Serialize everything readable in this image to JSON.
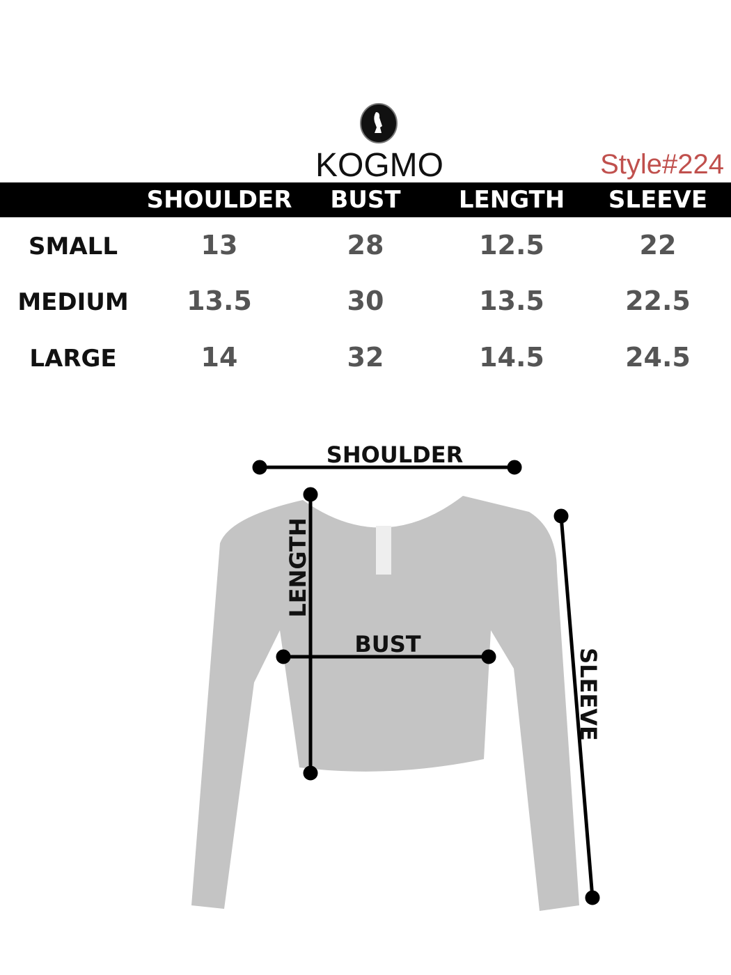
{
  "brand": {
    "name": "KOGMO",
    "logo_icon": "silhouette-head-oval-logo"
  },
  "style_number": "Style#224",
  "colors": {
    "header_bg": "#000000",
    "style_text": "#c0504d",
    "garment": "#c4c4c4"
  },
  "table": {
    "columns": [
      "SHOULDER",
      "BUST",
      "LENGTH",
      "SLEEVE"
    ],
    "rows": [
      {
        "size": "SMALL",
        "values": [
          "13",
          "28",
          "12.5",
          "22"
        ]
      },
      {
        "size": "MEDIUM",
        "values": [
          "13.5",
          "30",
          "13.5",
          "22.5"
        ]
      },
      {
        "size": "LARGE",
        "values": [
          "14",
          "32",
          "14.5",
          "24.5"
        ]
      }
    ]
  },
  "diagram": {
    "shoulder": "SHOULDER",
    "length": "LENGTH",
    "bust": "BUST",
    "sleeve": "SLEEVE"
  }
}
